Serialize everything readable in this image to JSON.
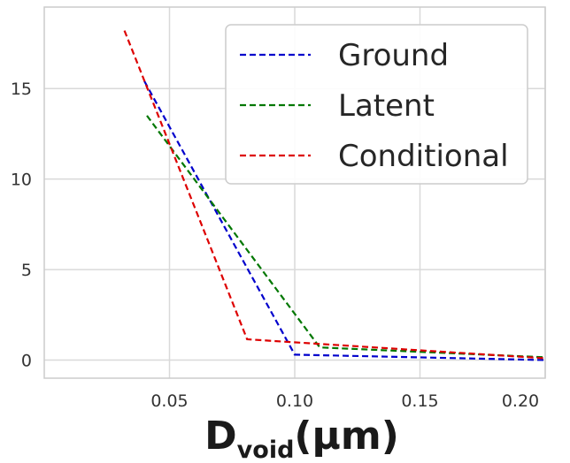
{
  "chart_data": {
    "type": "line",
    "xlabel": {
      "main": "D",
      "subscript": "void",
      "unit": "(μm)"
    },
    "ylabel": "",
    "xlim": [
      0.0,
      0.2
    ],
    "ylim": [
      -1,
      19.5
    ],
    "xticks": [
      0.05,
      0.1,
      0.15,
      0.2
    ],
    "xtick_labels": [
      "0.05",
      "0.10",
      "0.15",
      "0.20"
    ],
    "yticks": [
      0,
      5,
      10,
      15
    ],
    "ytick_labels": [
      "0",
      "5",
      "10",
      "15"
    ],
    "grid": true,
    "legend_position": "top-right",
    "series": [
      {
        "name": "Ground",
        "color": "#0000cc",
        "style": "dashed",
        "x": [
          0.04,
          0.1,
          0.2
        ],
        "y": [
          15.4,
          0.3,
          0.0
        ]
      },
      {
        "name": "Latent",
        "color": "#007700",
        "style": "dashed",
        "x": [
          0.041,
          0.11,
          0.2
        ],
        "y": [
          13.5,
          0.7,
          0.15
        ]
      },
      {
        "name": "Conditional",
        "color": "#dd0000",
        "style": "dashed",
        "x": [
          0.032,
          0.081,
          0.2
        ],
        "y": [
          18.2,
          1.15,
          0.1
        ]
      }
    ]
  }
}
